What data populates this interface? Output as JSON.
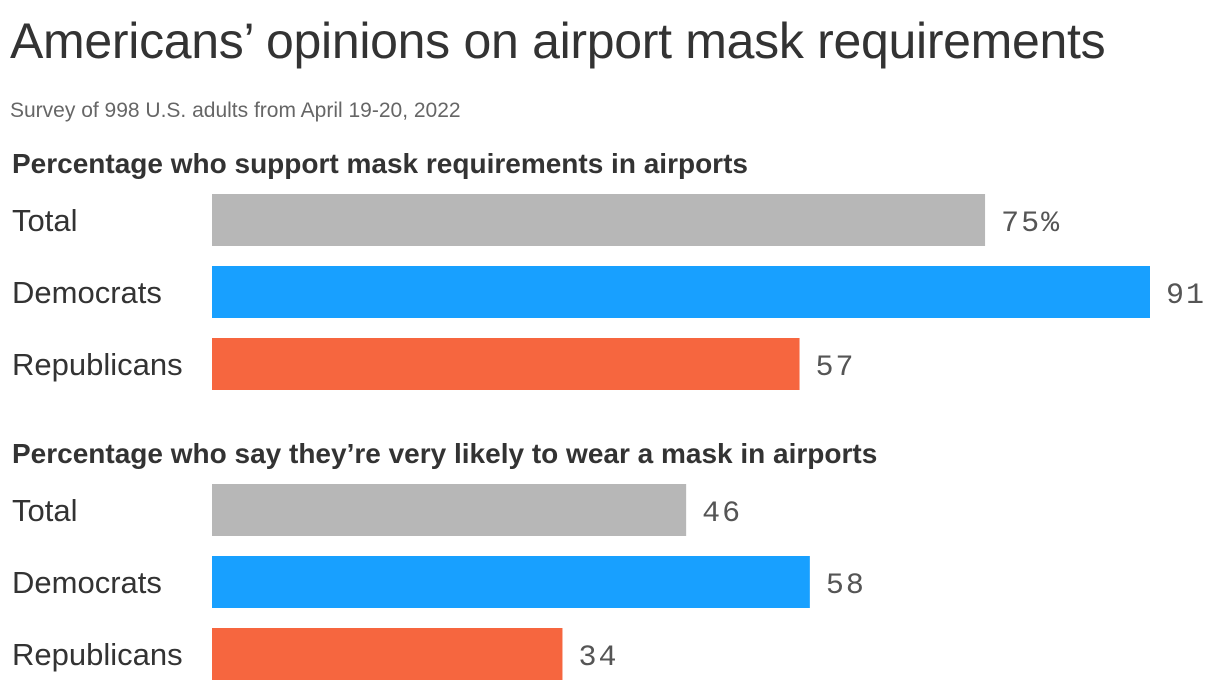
{
  "title": "Americans’ opinions on airport mask requirements",
  "subtitle": "Survey of 998 U.S. adults from April 19-20, 2022",
  "colors": {
    "Total": "#b7b7b7",
    "Democrats": "#18a0ff",
    "Republicans": "#f6663f"
  },
  "chart_data": [
    {
      "type": "bar",
      "orientation": "horizontal",
      "title": "Percentage who support mask requirements in airports",
      "categories": [
        "Total",
        "Democrats",
        "Republicans"
      ],
      "values": [
        75,
        91,
        57
      ],
      "value_labels": [
        "75%",
        "91",
        "57"
      ],
      "xlim": [
        0,
        91
      ],
      "grid": false
    },
    {
      "type": "bar",
      "orientation": "horizontal",
      "title": "Percentage who say they’re very likely to wear a mask in airports",
      "categories": [
        "Total",
        "Democrats",
        "Republicans"
      ],
      "values": [
        46,
        58,
        34
      ],
      "value_labels": [
        "46",
        "58",
        "34"
      ],
      "xlim": [
        0,
        91
      ],
      "grid": false
    }
  ]
}
